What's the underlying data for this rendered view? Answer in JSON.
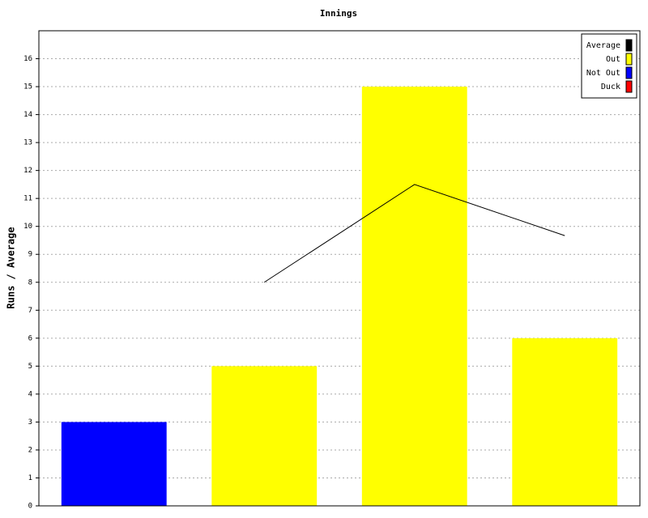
{
  "chart_data": {
    "type": "bar",
    "title": "Innings",
    "ylabel": "Runs / Average",
    "categories": [
      null,
      null,
      null,
      null
    ],
    "values": [
      3,
      5,
      15,
      6
    ],
    "colors": [
      "#0000ff",
      "#ffff00",
      "#ffff00",
      "#ffff00"
    ],
    "average_values": [
      null,
      8,
      11.5,
      9.67
    ],
    "legend": [
      {
        "name": "Average",
        "color": "#000000"
      },
      {
        "name": "Out",
        "color": "#ffff00"
      },
      {
        "name": "Not Out",
        "color": "#0000ff"
      },
      {
        "name": "Duck",
        "color": "#ff0000"
      }
    ],
    "ylim": [
      0,
      17
    ],
    "yticks": [
      0,
      1,
      2,
      3,
      4,
      5,
      6,
      7,
      8,
      9,
      10,
      11,
      12,
      13,
      14,
      15,
      16
    ],
    "grid": true
  }
}
